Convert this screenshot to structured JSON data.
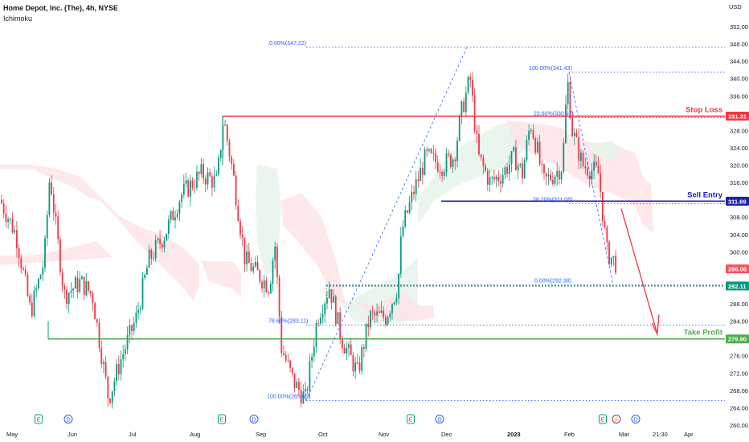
{
  "header": {
    "symbol_line": "Home Depot, Inc. (The), 4h, NYSE",
    "indicator": "Ichimoku"
  },
  "chart_data": {
    "type": "candlestick",
    "currency_label": "USD",
    "ylim": [
      258,
      355
    ],
    "y_ticks": [
      "352.00",
      "348.00",
      "344.00",
      "340.00",
      "336.00",
      "332.00",
      "328.00",
      "324.00",
      "320.00",
      "316.00",
      "312.00",
      "308.00",
      "304.00",
      "300.00",
      "296.00",
      "292.00",
      "288.00",
      "284.00",
      "280.00",
      "276.00",
      "272.00",
      "268.00",
      "264.00",
      "260.00"
    ],
    "x_ticks": [
      "May",
      "Jun",
      "Jul",
      "Aug",
      "Sep",
      "Oct",
      "Nov",
      "Dec",
      "2023",
      "Feb",
      "Mar",
      "21:30",
      "Apr"
    ],
    "price_tags": [
      {
        "label": "331.31",
        "value": 331.31,
        "color": "#f23645"
      },
      {
        "label": "311.69",
        "value": 311.69,
        "color": "#1e22aa"
      },
      {
        "label": "296.06",
        "value": 296.06,
        "color": "#f7525f"
      },
      {
        "label": "292.11",
        "value": 292.11,
        "color": "#089981"
      },
      {
        "label": "279.90",
        "value": 279.9,
        "color": "#4caf50"
      }
    ],
    "levels": [
      {
        "name": "Stop Loss",
        "value": 331.31,
        "color": "#f23645"
      },
      {
        "name": "Sell Entry",
        "value": 311.69,
        "color": "#1e22aa"
      },
      {
        "name": "Take Profit",
        "value": 279.9,
        "color": "#4caf50"
      }
    ],
    "fib_labels": [
      {
        "text": "0.00%(347.22)",
        "value": 347.22
      },
      {
        "text": "100.00%(341.43)",
        "value": 341.43
      },
      {
        "text": "23.60%(330.97)",
        "value": 330.97
      },
      {
        "text": "38.20%(311.08)",
        "value": 311.08
      },
      {
        "text": "0.00%(292.38)",
        "value": 292.38
      },
      {
        "text": "78.60%(283.11)",
        "value": 283.11
      },
      {
        "text": "100.00%(265.65)",
        "value": 265.65
      }
    ],
    "event_markers": [
      "E",
      "D",
      "E",
      "D",
      "E",
      "D",
      "E",
      "⚡",
      "D"
    ],
    "colors": {
      "up": "#089981",
      "down": "#f23645",
      "cloud_up": "#e6f4ea",
      "cloud_down": "#fde4e6",
      "fib": "#2962ff",
      "arrow": "#f23645"
    }
  }
}
